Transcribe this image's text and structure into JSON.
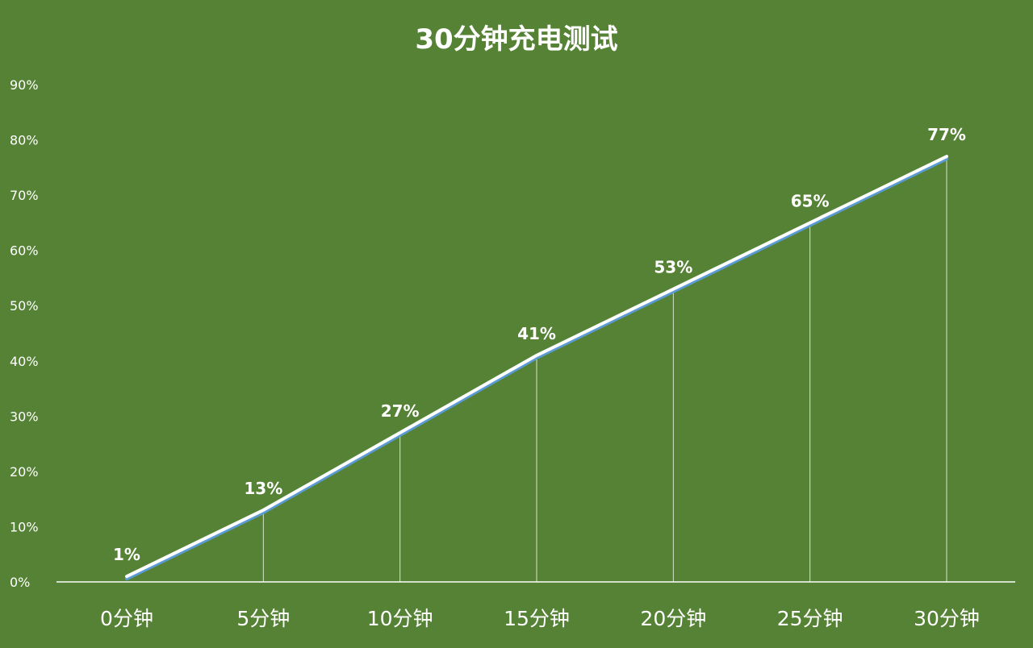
{
  "chart_data": {
    "type": "line",
    "title": "30分钟充电测试",
    "categories": [
      "0分钟",
      "5分钟",
      "10分钟",
      "15分钟",
      "20分钟",
      "25分钟",
      "30分钟"
    ],
    "series": [
      {
        "values": [
          1,
          13,
          27,
          41,
          53,
          65,
          77
        ],
        "data_labels": [
          "1%",
          "13%",
          "27%",
          "41%",
          "53%",
          "65%",
          "77%"
        ]
      }
    ],
    "y_ticks": [
      "0%",
      "10%",
      "20%",
      "30%",
      "40%",
      "50%",
      "60%",
      "70%",
      "80%",
      "90%"
    ],
    "ylim": [
      0,
      90
    ],
    "xlabel": "",
    "ylabel": "",
    "grid": false,
    "legend": "none",
    "colors": {
      "background": "#558235",
      "line": "#ffffff",
      "line_shadow": "#5b9bd5",
      "drop_line": "#d9e6cc",
      "axis": "#ffffff",
      "text": "#ffffff"
    }
  }
}
